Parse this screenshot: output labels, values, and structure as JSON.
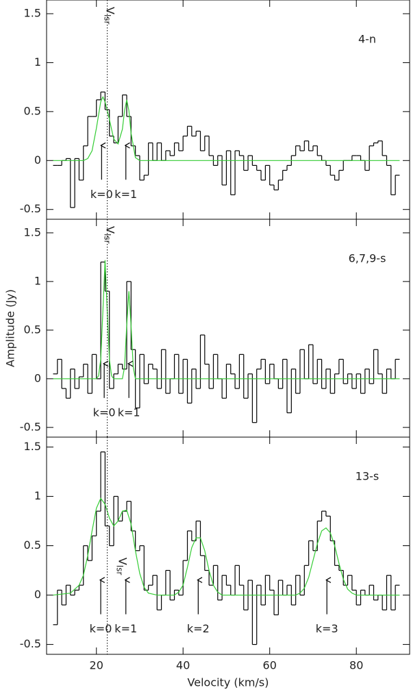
{
  "chart_data": [
    {
      "type": "step",
      "label": "4-n",
      "xlim": [
        8.5,
        92.3
      ],
      "ylim": [
        -0.6,
        1.64
      ],
      "yticks": [
        -0.5,
        0,
        0.5,
        1,
        1.5
      ],
      "marker": {
        "x": 22.5,
        "label": "V",
        "subscript": "lsr"
      },
      "x": [
        10.5,
        11.5,
        12.5,
        13.5,
        14.5,
        15.5,
        16.5,
        17.5,
        18.5,
        19.5,
        20.5,
        21.5,
        22.5,
        23.5,
        24.5,
        25.5,
        26.5,
        27.5,
        28.5,
        29.5,
        30.5,
        31.5,
        32.5,
        33.5,
        34.5,
        35.5,
        36.5,
        37.5,
        38.5,
        39.5,
        40.5,
        41.5,
        42.5,
        43.5,
        44.5,
        45.5,
        46.5,
        47.5,
        48.5,
        49.5,
        50.5,
        51.5,
        52.5,
        53.5,
        54.5,
        55.5,
        56.5,
        57.5,
        58.5,
        59.5,
        60.5,
        61.5,
        62.5,
        63.5,
        64.5,
        65.5,
        66.5,
        67.5,
        68.5,
        69.5,
        70.5,
        71.5,
        72.5,
        73.5,
        74.5,
        75.5,
        76.5,
        77.5,
        78.5,
        79.5,
        80.5,
        81.5,
        82.5,
        83.5,
        84.5,
        85.5,
        86.5,
        87.5,
        88.5,
        89.5
      ],
      "values": [
        -0.05,
        -0.05,
        0.0,
        0.02,
        -0.48,
        0.02,
        -0.2,
        0.15,
        0.45,
        0.45,
        0.62,
        0.7,
        0.52,
        0.25,
        0.18,
        0.45,
        0.67,
        0.45,
        0.15,
        0.05,
        -0.2,
        -0.15,
        0.18,
        0.0,
        0.18,
        0.0,
        0.1,
        0.05,
        0.18,
        0.1,
        0.25,
        0.35,
        0.25,
        0.3,
        0.1,
        0.25,
        0.05,
        -0.05,
        0.05,
        -0.25,
        0.1,
        -0.35,
        0.1,
        0.05,
        -0.1,
        0.05,
        -0.05,
        -0.1,
        -0.2,
        -0.05,
        -0.25,
        -0.3,
        -0.2,
        -0.1,
        -0.05,
        0.05,
        0.15,
        0.1,
        0.2,
        0.1,
        0.15,
        0.05,
        0.0,
        -0.05,
        -0.15,
        -0.2,
        -0.1,
        0.0,
        0.0,
        0.05,
        0.05,
        0.0,
        -0.1,
        0.15,
        0.18,
        0.2,
        0.05,
        -0.05,
        -0.35,
        -0.15
      ],
      "color": "#000000",
      "fit": {
        "color": "#33cc33",
        "x": [
          10,
          17,
          18,
          19,
          20,
          21,
          21.5,
          22,
          23,
          24,
          25,
          26,
          26.5,
          27,
          27.5,
          28,
          29,
          30,
          32,
          90
        ],
        "values": [
          0,
          0,
          0.02,
          0.1,
          0.33,
          0.6,
          0.65,
          0.6,
          0.42,
          0.22,
          0.17,
          0.32,
          0.51,
          0.62,
          0.51,
          0.28,
          0.03,
          0,
          0,
          0
        ]
      },
      "annotations": [
        {
          "text": "k=0",
          "x": 21.2
        },
        {
          "text": "k=1",
          "x": 26.8
        }
      ]
    },
    {
      "type": "step",
      "label": "6,7,9-s",
      "ylabel": "Amplitude (Jy)",
      "xlim": [
        8.5,
        92.3
      ],
      "ylim": [
        -0.6,
        1.64
      ],
      "yticks": [
        -0.5,
        0,
        0.5,
        1,
        1.5
      ],
      "marker": {
        "x": 22.5,
        "label": "V",
        "subscript": "lsr"
      },
      "x": [
        10.5,
        11.5,
        12.5,
        13.5,
        14.5,
        15.5,
        16.5,
        17.5,
        18.5,
        19.5,
        20.5,
        21.5,
        22.5,
        23.5,
        24.5,
        25.5,
        26.5,
        27.5,
        28.5,
        29.5,
        30.5,
        31.5,
        32.5,
        33.5,
        34.5,
        35.5,
        36.5,
        37.5,
        38.5,
        39.5,
        40.5,
        41.5,
        42.5,
        43.5,
        44.5,
        45.5,
        46.5,
        47.5,
        48.5,
        49.5,
        50.5,
        51.5,
        52.5,
        53.5,
        54.5,
        55.5,
        56.5,
        57.5,
        58.5,
        59.5,
        60.5,
        61.5,
        62.5,
        63.5,
        64.5,
        65.5,
        66.5,
        67.5,
        68.5,
        69.5,
        70.5,
        71.5,
        72.5,
        73.5,
        74.5,
        75.5,
        76.5,
        77.5,
        78.5,
        79.5,
        80.5,
        81.5,
        82.5,
        83.5,
        84.5,
        85.5,
        86.5,
        87.5,
        88.5,
        89.5
      ],
      "values": [
        0.05,
        0.2,
        -0.1,
        -0.2,
        0.1,
        -0.1,
        0.02,
        0.15,
        -0.15,
        0.25,
        0.0,
        1.2,
        0.9,
        -0.1,
        0.05,
        0.15,
        0.1,
        1.0,
        0.3,
        -0.3,
        0.25,
        -0.05,
        0.15,
        0.1,
        -0.1,
        0.3,
        -0.15,
        0.0,
        0.25,
        -0.15,
        0.2,
        -0.25,
        0.1,
        -0.1,
        0.45,
        0.15,
        -0.1,
        0.25,
        0.0,
        -0.2,
        0.15,
        0.05,
        -0.1,
        0.25,
        -0.2,
        0.05,
        -0.45,
        0.1,
        0.2,
        -0.05,
        0.15,
        0.0,
        -0.1,
        0.2,
        -0.35,
        0.1,
        -0.15,
        0.3,
        0.0,
        0.35,
        -0.05,
        0.2,
        -0.1,
        0.1,
        -0.15,
        0.05,
        0.2,
        -0.05,
        0.05,
        -0.1,
        0.05,
        -0.15,
        0.1,
        -0.05,
        0.3,
        0.05,
        -0.15,
        0.1,
        0.0,
        0.2
      ],
      "color": "#000000",
      "fit": {
        "color": "#33cc33",
        "x": [
          10,
          20,
          20.5,
          21,
          21.5,
          22,
          22.5,
          23,
          23.5,
          24,
          26,
          26.5,
          27,
          27.5,
          28,
          28.5,
          29,
          90
        ],
        "values": [
          0,
          0,
          0.03,
          0.2,
          0.7,
          1.22,
          0.7,
          0.2,
          0.03,
          0,
          0,
          0.12,
          0.55,
          0.9,
          0.55,
          0.12,
          0,
          0
        ]
      },
      "annotations": [
        {
          "text": "k=0",
          "x": 21.8
        },
        {
          "text": "k=1",
          "x": 27.5
        }
      ]
    },
    {
      "type": "step",
      "label": "13-s",
      "xlabel": "Velocity (km/s)",
      "xlim": [
        8.5,
        92.3
      ],
      "ylim": [
        -0.6,
        1.6
      ],
      "yticks": [
        -0.5,
        0,
        0.5,
        1,
        1.5
      ],
      "xticks": [
        20,
        40,
        60,
        80
      ],
      "marker": {
        "x": 22.5,
        "label": "V",
        "subscript": "lsr"
      },
      "x": [
        10.5,
        11.5,
        12.5,
        13.5,
        14.5,
        15.5,
        16.5,
        17.5,
        18.5,
        19.5,
        20.5,
        21.5,
        22.5,
        23.5,
        24.5,
        25.5,
        26.5,
        27.5,
        28.5,
        29.5,
        30.5,
        31.5,
        32.5,
        33.5,
        34.5,
        35.5,
        36.5,
        37.5,
        38.5,
        39.5,
        40.5,
        41.5,
        42.5,
        43.5,
        44.5,
        45.5,
        46.5,
        47.5,
        48.5,
        49.5,
        50.5,
        51.5,
        52.5,
        53.5,
        54.5,
        55.5,
        56.5,
        57.5,
        58.5,
        59.5,
        60.5,
        61.5,
        62.5,
        63.5,
        64.5,
        65.5,
        66.5,
        67.5,
        68.5,
        69.5,
        70.5,
        71.5,
        72.5,
        73.5,
        74.5,
        75.5,
        76.5,
        77.5,
        78.5,
        79.5,
        80.5,
        81.5,
        82.5,
        83.5,
        84.5,
        85.5,
        86.5,
        87.5,
        88.5,
        89.5
      ],
      "values": [
        -0.3,
        0.05,
        -0.1,
        0.1,
        0.0,
        0.05,
        0.1,
        0.5,
        0.35,
        0.6,
        0.85,
        1.45,
        0.7,
        0.5,
        1.0,
        0.75,
        0.85,
        0.95,
        0.65,
        0.45,
        0.5,
        0.05,
        0.1,
        0.2,
        -0.15,
        0.0,
        0.25,
        -0.05,
        0.05,
        0.0,
        0.35,
        0.65,
        0.55,
        0.75,
        0.4,
        0.25,
        0.1,
        0.3,
        -0.05,
        0.2,
        0.1,
        0.0,
        0.3,
        0.1,
        -0.15,
        0.15,
        -0.5,
        0.1,
        -0.1,
        0.2,
        0.05,
        -0.2,
        0.15,
        0.0,
        0.1,
        -0.1,
        0.2,
        0.0,
        0.3,
        0.55,
        0.45,
        0.75,
        0.85,
        0.8,
        0.55,
        0.3,
        0.25,
        0.1,
        0.2,
        0.05,
        -0.1,
        0.05,
        0.0,
        0.1,
        -0.05,
        0.0,
        -0.15,
        0.2,
        -0.15,
        0.1
      ],
      "color": "#000000",
      "fit": {
        "color": "#33cc33",
        "x": [
          10,
          14,
          16,
          17,
          18,
          19,
          20,
          21,
          22,
          23,
          24,
          25,
          26,
          27,
          28,
          29,
          30,
          31,
          32,
          34,
          38,
          39,
          40,
          41,
          42,
          43,
          44,
          45,
          46,
          47,
          48,
          49,
          66,
          67,
          68,
          69,
          70,
          71,
          72,
          73,
          74,
          75,
          76,
          77,
          78,
          79,
          80,
          90
        ],
        "values": [
          0,
          0.02,
          0.1,
          0.2,
          0.4,
          0.65,
          0.88,
          0.98,
          0.92,
          0.78,
          0.7,
          0.75,
          0.85,
          0.86,
          0.72,
          0.45,
          0.22,
          0.08,
          0.02,
          0,
          0,
          0.03,
          0.1,
          0.28,
          0.48,
          0.58,
          0.58,
          0.45,
          0.25,
          0.1,
          0.03,
          0,
          0,
          0.02,
          0.07,
          0.18,
          0.35,
          0.52,
          0.65,
          0.68,
          0.63,
          0.5,
          0.32,
          0.16,
          0.06,
          0.02,
          0,
          0
        ]
      },
      "annotations": [
        {
          "text": "k=0",
          "x": 21.0
        },
        {
          "text": "k=1",
          "x": 26.8
        },
        {
          "text": "k=2",
          "x": 43.5
        },
        {
          "text": "k=3",
          "x": 73.2
        }
      ]
    }
  ]
}
